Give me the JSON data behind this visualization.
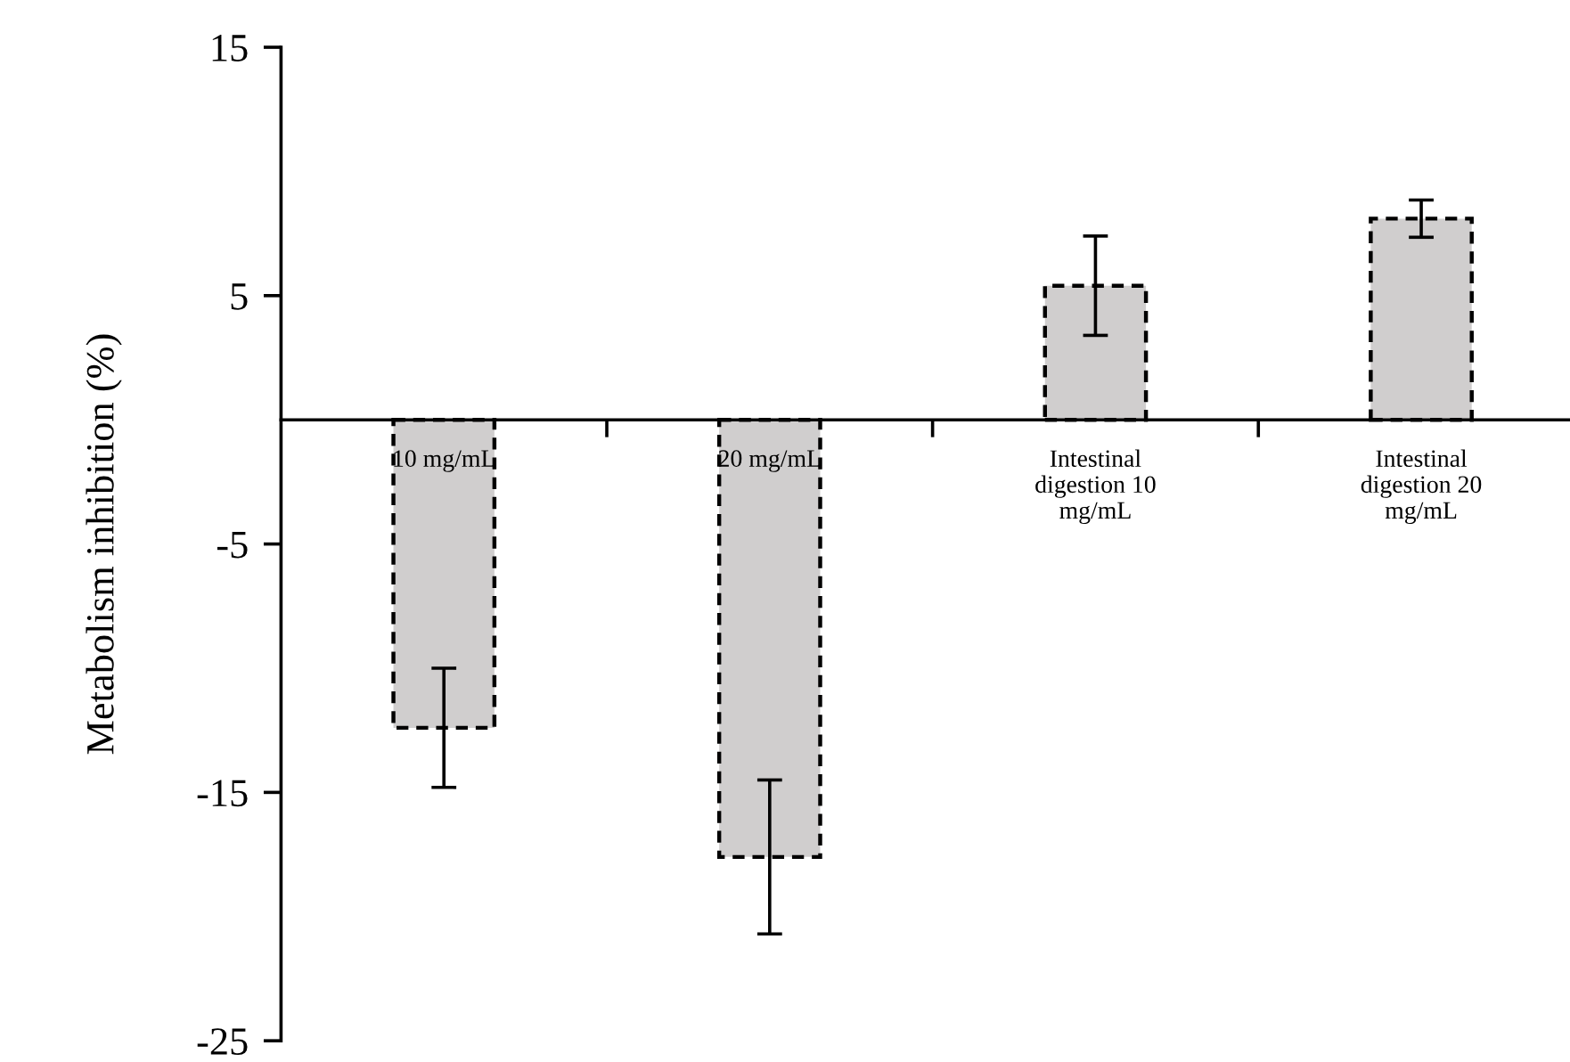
{
  "chart_data": {
    "type": "bar",
    "ylabel": "Metabolism inhibition (%)",
    "categories": [
      "10 mg/mL",
      "20 mg/mL",
      "Intestinal\ndigestion 10\nmg/mL",
      "Intestinal\ndigestion 20\nmg/mL"
    ],
    "values": [
      -12.4,
      -17.6,
      5.4,
      8.1
    ],
    "errors": [
      2.4,
      3.1,
      2.0,
      0.75
    ],
    "color": "#d0cece",
    "line_style": "dashed",
    "ylim": [
      -25,
      15
    ],
    "yticks": [
      -25,
      -15,
      -5,
      5,
      15
    ],
    "grid": false,
    "legend": false
  }
}
